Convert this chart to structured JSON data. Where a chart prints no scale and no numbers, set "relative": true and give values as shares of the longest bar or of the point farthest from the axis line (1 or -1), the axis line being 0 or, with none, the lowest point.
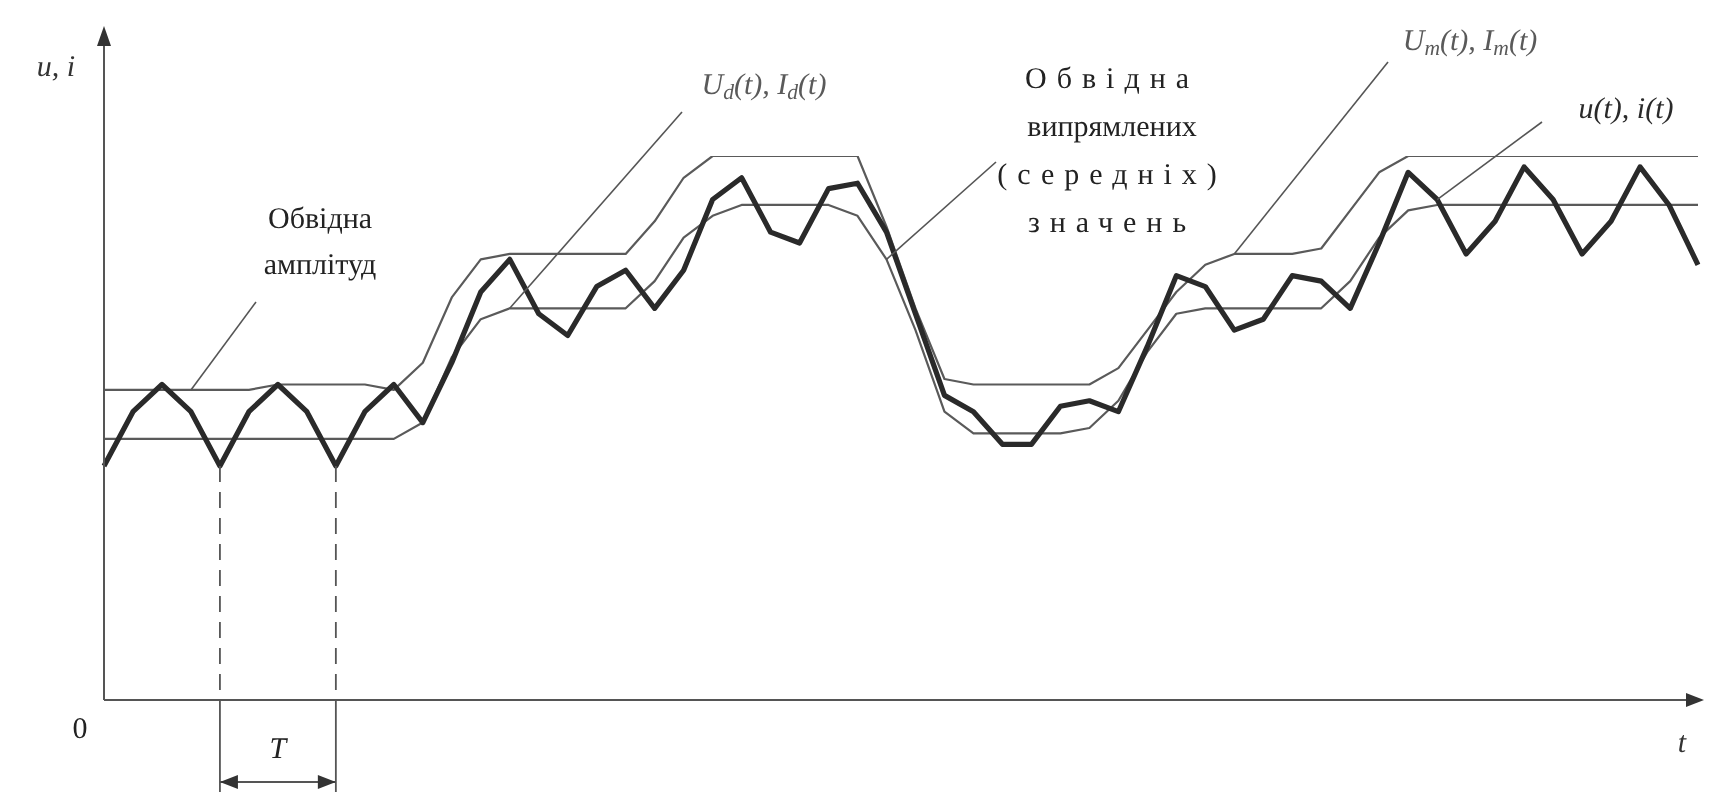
{
  "chart_data": {
    "type": "line",
    "relative": true,
    "marker": "none",
    "legend": false,
    "ylabel": "u, i",
    "xlabel": "t",
    "categories": [
      null,
      null,
      null,
      null,
      null,
      null,
      null,
      null,
      null,
      null,
      null,
      null,
      null,
      null,
      null,
      null,
      null,
      null,
      null,
      null,
      null,
      null,
      null,
      null,
      null,
      null,
      null,
      null,
      null,
      null,
      null,
      null,
      null,
      null,
      null,
      null,
      null,
      null,
      null,
      null,
      null,
      null,
      null,
      null,
      null,
      null,
      null,
      null,
      null,
      null,
      null,
      null,
      null,
      null,
      null,
      null
    ],
    "series": [
      {
        "name": "u(t), i(t)",
        "color": "#2a2a2a",
        "values": [
          0.43,
          0.53,
          0.58,
          0.53,
          0.43,
          0.53,
          0.58,
          0.53,
          0.43,
          0.53,
          0.58,
          0.51,
          0.62,
          0.75,
          0.81,
          0.71,
          0.67,
          0.76,
          0.79,
          0.72,
          0.79,
          0.92,
          0.96,
          0.86,
          0.84,
          0.94,
          0.95,
          0.86,
          0.71,
          0.56,
          0.53,
          0.47,
          0.47,
          0.54,
          0.55,
          0.53,
          0.65,
          0.78,
          0.76,
          0.68,
          0.7,
          0.78,
          0.77,
          0.72,
          0.84,
          0.97,
          0.92,
          0.82,
          0.88,
          0.98,
          0.92,
          0.82,
          0.88,
          0.98,
          0.91,
          0.8
        ]
      },
      {
        "name": "U$_{m}$(t), I$_{m}$(t)",
        "color": "#5a5a5a",
        "values": [
          0.57,
          0.57,
          0.57,
          0.57,
          0.57,
          0.57,
          0.58,
          0.58,
          0.58,
          0.58,
          0.57,
          0.62,
          0.74,
          0.81,
          0.82,
          0.82,
          0.82,
          0.82,
          0.82,
          0.88,
          0.96,
          1,
          1,
          1,
          1,
          1,
          1,
          0.87,
          0.72,
          0.59,
          0.58,
          0.58,
          0.58,
          0.58,
          0.58,
          0.61,
          0.68,
          0.75,
          0.8,
          0.82,
          0.82,
          0.82,
          0.83,
          0.9,
          0.97,
          1,
          1,
          1,
          1,
          1,
          1,
          1,
          1,
          1,
          1,
          1
        ]
      },
      {
        "name": "U$_{d}$(t), I$_{d}$(t)",
        "color": "#5a5a5a",
        "values": [
          0.48,
          0.48,
          0.48,
          0.48,
          0.48,
          0.48,
          0.48,
          0.48,
          0.48,
          0.48,
          0.48,
          0.51,
          0.63,
          0.7,
          0.72,
          0.72,
          0.72,
          0.72,
          0.72,
          0.77,
          0.85,
          0.89,
          0.91,
          0.91,
          0.91,
          0.91,
          0.89,
          0.81,
          0.68,
          0.53,
          0.49,
          0.49,
          0.49,
          0.49,
          0.5,
          0.55,
          0.64,
          0.71,
          0.72,
          0.72,
          0.72,
          0.72,
          0.72,
          0.77,
          0.85,
          0.9,
          0.91,
          0.91,
          0.91,
          0.91,
          0.91,
          0.91,
          0.91,
          0.91,
          0.91,
          0.91
        ]
      }
    ],
    "annotations": [
      "Обвідна амплітуд",
      "Обвідна випрямлених (середніх) значень",
      "0",
      "T"
    ]
  }
}
